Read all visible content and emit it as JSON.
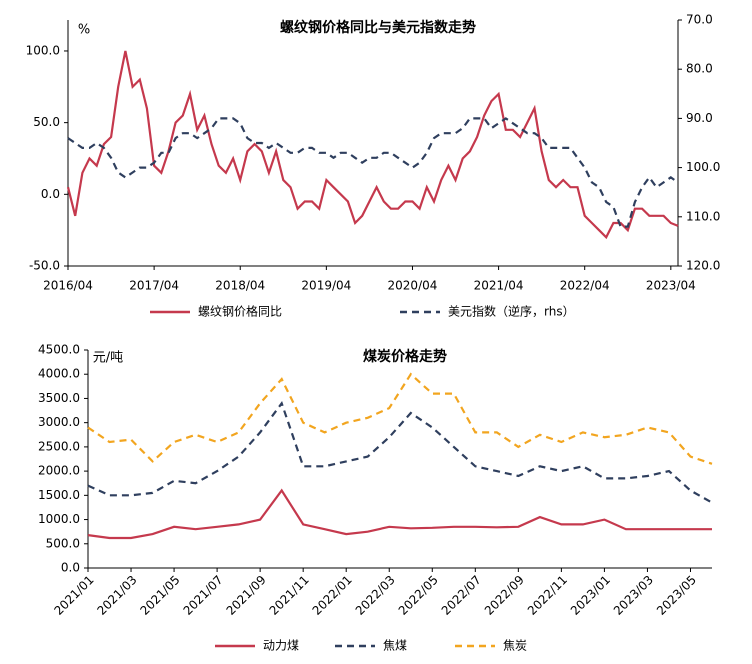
{
  "chart_data": [
    {
      "type": "line",
      "title": "螺纹钢价格同比与美元指数走势",
      "y_unit": "%",
      "categories": [
        "2016/04",
        null,
        null,
        null,
        null,
        null,
        null,
        null,
        null,
        null,
        null,
        null,
        "2017/04",
        null,
        null,
        null,
        null,
        null,
        null,
        null,
        null,
        null,
        null,
        null,
        "2018/04",
        null,
        null,
        null,
        null,
        null,
        null,
        null,
        null,
        null,
        null,
        null,
        "2019/04",
        null,
        null,
        null,
        null,
        null,
        null,
        null,
        null,
        null,
        null,
        null,
        "2020/04",
        null,
        null,
        null,
        null,
        null,
        null,
        null,
        null,
        null,
        null,
        null,
        "2021/04",
        null,
        null,
        null,
        null,
        null,
        null,
        null,
        null,
        null,
        null,
        null,
        "2022/04",
        null,
        null,
        null,
        null,
        null,
        null,
        null,
        null,
        null,
        null,
        null,
        "2023/04",
        null
      ],
      "series": [
        {
          "name": "螺纹钢价格同比",
          "color": "#c5394d",
          "dash": false,
          "values": [
            5,
            -15,
            15,
            25,
            20,
            35,
            40,
            75,
            100,
            75,
            80,
            60,
            20,
            15,
            30,
            50,
            55,
            70,
            45,
            55,
            35,
            20,
            15,
            25,
            10,
            30,
            35,
            30,
            15,
            30,
            10,
            5,
            -10,
            -5,
            -5,
            -10,
            10,
            5,
            0,
            -5,
            -20,
            -15,
            -5,
            5,
            -5,
            -10,
            -10,
            -5,
            -5,
            -10,
            5,
            -5,
            10,
            20,
            10,
            25,
            30,
            40,
            55,
            65,
            70,
            45,
            45,
            40,
            50,
            60,
            30,
            10,
            5,
            10,
            5,
            5,
            -15,
            -20,
            -25,
            -30,
            -20,
            -20,
            -25,
            -10,
            -10,
            -15,
            -15,
            -15,
            -20,
            -22
          ]
        },
        {
          "name": "美元指数（逆序，rhs）",
          "color": "#2f3f5e",
          "dash": true,
          "axis": "y2",
          "values": [
            94,
            95,
            96,
            96,
            95,
            96,
            98,
            101,
            102,
            101,
            100,
            100,
            99,
            97,
            97,
            94,
            93,
            93,
            94,
            93,
            92,
            90,
            90,
            90,
            91,
            94,
            95,
            95,
            96,
            95,
            96,
            97,
            97,
            96,
            96,
            97,
            97,
            98,
            97,
            97,
            98,
            99,
            98,
            98,
            97,
            97,
            98,
            99,
            100,
            99,
            97,
            94,
            93,
            93,
            93,
            92,
            90,
            90,
            90,
            92,
            91,
            90,
            91,
            92,
            93,
            93,
            94,
            96,
            96,
            96,
            96,
            98,
            100,
            103,
            104,
            107,
            108,
            112,
            112,
            107,
            104,
            102,
            104,
            103,
            102,
            103
          ]
        }
      ],
      "ylim": [
        -50,
        121.6
      ],
      "yticks": [
        {
          "value": -50,
          "label": "-50.0"
        },
        {
          "value": 0,
          "label": "0.0"
        },
        {
          "value": 50,
          "label": "50.0"
        },
        {
          "value": 100,
          "label": "100.0"
        }
      ],
      "y2lim": [
        70,
        120
      ],
      "y2_inverted": true,
      "y2ticks": [
        {
          "value": 70,
          "label": "70.0"
        },
        {
          "value": 80,
          "label": "80.0"
        },
        {
          "value": 90,
          "label": "90.0"
        },
        {
          "value": 100,
          "label": "100.0"
        },
        {
          "value": 110,
          "label": "110.0"
        },
        {
          "value": 120,
          "label": "120.0"
        }
      ],
      "grid": false,
      "legend": "bottom"
    },
    {
      "type": "line",
      "title": "煤炭价格走势",
      "y_unit": "元/吨",
      "categories": [
        "2021/01",
        null,
        "2021/03",
        null,
        "2021/05",
        null,
        "2021/07",
        null,
        "2021/09",
        null,
        "2021/11",
        null,
        "2022/01",
        null,
        "2022/03",
        null,
        "2022/05",
        null,
        "2022/07",
        null,
        "2022/09",
        null,
        "2022/11",
        null,
        "2023/01",
        null,
        "2023/03",
        null,
        "2023/05",
        null
      ],
      "series": [
        {
          "name": "动力煤",
          "color": "#c5394d",
          "dash": false,
          "values": [
            680,
            620,
            620,
            700,
            850,
            800,
            850,
            900,
            1000,
            1600,
            900,
            800,
            700,
            750,
            850,
            820,
            830,
            850,
            850,
            840,
            850,
            1050,
            900,
            900,
            1000,
            800,
            800,
            800,
            800,
            800
          ]
        },
        {
          "name": "焦煤",
          "color": "#2f3f5e",
          "dash": true,
          "values": [
            1700,
            1500,
            1500,
            1550,
            1800,
            1750,
            2000,
            2300,
            2800,
            3400,
            2100,
            2100,
            2200,
            2300,
            2700,
            3200,
            2900,
            2500,
            2100,
            2000,
            1900,
            2100,
            2000,
            2100,
            1850,
            1850,
            1900,
            2000,
            1600,
            1350
          ]
        },
        {
          "name": "焦炭",
          "color": "#f2a51f",
          "dash": true,
          "values": [
            2900,
            2600,
            2650,
            2200,
            2600,
            2750,
            2600,
            2800,
            3400,
            3900,
            3000,
            2800,
            3000,
            3100,
            3300,
            4000,
            3600,
            3600,
            2800,
            2800,
            2500,
            2750,
            2600,
            2800,
            2700,
            2750,
            2900,
            2800,
            2300,
            2150
          ]
        }
      ],
      "ylim": [
        0,
        4500
      ],
      "yticks": [
        {
          "value": 0,
          "label": "0.0"
        },
        {
          "value": 500,
          "label": "500.0"
        },
        {
          "value": 1000,
          "label": "1000.0"
        },
        {
          "value": 1500,
          "label": "1500.0"
        },
        {
          "value": 2000,
          "label": "2000.0"
        },
        {
          "value": 2500,
          "label": "2500.0"
        },
        {
          "value": 3000,
          "label": "3000.0"
        },
        {
          "value": 3500,
          "label": "3500.0"
        },
        {
          "value": 4000,
          "label": "4000.0"
        },
        {
          "value": 4500,
          "label": "4500.0"
        }
      ],
      "grid": false,
      "legend": "bottom"
    }
  ]
}
